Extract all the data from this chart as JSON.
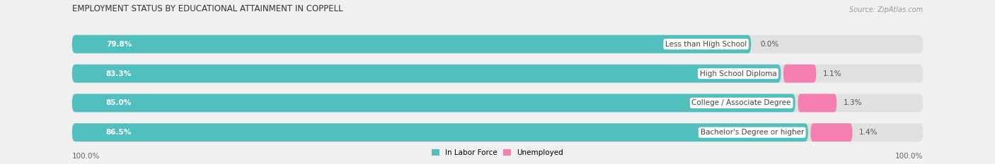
{
  "title": "EMPLOYMENT STATUS BY EDUCATIONAL ATTAINMENT IN COPPELL",
  "source": "Source: ZipAtlas.com",
  "categories": [
    "Less than High School",
    "High School Diploma",
    "College / Associate Degree",
    "Bachelor's Degree or higher"
  ],
  "labor_force_values": [
    79.8,
    83.3,
    85.0,
    86.5
  ],
  "unemployed_values": [
    0.0,
    1.1,
    1.3,
    1.4
  ],
  "labor_force_color": "#52bfbf",
  "unemployed_color": "#f47fb0",
  "bar_bg_color": "#e0e0e0",
  "background_color": "#f0f0f0",
  "bar_height": 0.62,
  "left_label": "100.0%",
  "right_label": "100.0%",
  "legend_labor_force": "In Labor Force",
  "legend_unemployed": "Unemployed",
  "title_fontsize": 8.5,
  "source_fontsize": 7,
  "label_fontsize": 7.5,
  "bar_label_fontsize": 7.5,
  "category_fontsize": 7.5,
  "xlim_left": -8,
  "xlim_right": 108
}
